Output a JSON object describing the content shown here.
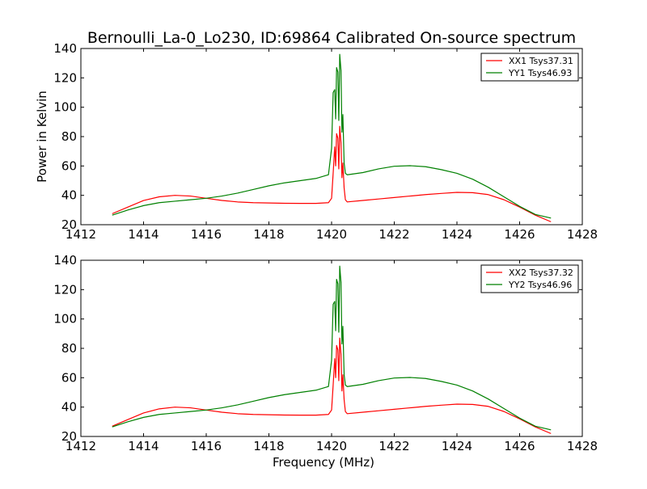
{
  "figure_title": "Bernoulli_La-0_Lo230, ID:69864 Calibrated On-source spectrum",
  "chart_data": [
    {
      "type": "line",
      "title": "Bernoulli_La-0_Lo230, ID:69864 Calibrated On-source spectrum",
      "xlabel": "",
      "ylabel": "Power in Kelvin",
      "xlim": [
        1412,
        1428
      ],
      "ylim": [
        20,
        140
      ],
      "xticks": [
        "1412",
        "1414",
        "1416",
        "1418",
        "1420",
        "1422",
        "1424",
        "1426",
        "1428"
      ],
      "yticks": [
        "20",
        "40",
        "60",
        "80",
        "100",
        "120",
        "140"
      ],
      "grid": false,
      "legend_position": "top-right",
      "series": [
        {
          "name": "XX1 Tsys37.31",
          "color": "#ff0000",
          "x": [
            1413.0,
            1413.5,
            1414.0,
            1414.5,
            1415.0,
            1415.5,
            1416.0,
            1416.5,
            1417.0,
            1417.5,
            1418.0,
            1418.5,
            1419.0,
            1419.5,
            1419.9,
            1420.0,
            1420.05,
            1420.1,
            1420.13,
            1420.16,
            1420.2,
            1420.23,
            1420.26,
            1420.3,
            1420.33,
            1420.36,
            1420.4,
            1420.44,
            1420.5,
            1421.0,
            1421.5,
            1422.0,
            1422.5,
            1423.0,
            1423.5,
            1424.0,
            1424.5,
            1425.0,
            1425.5,
            1426.0,
            1426.5,
            1427.0
          ],
          "y": [
            27.5,
            32,
            36.5,
            39,
            40,
            39.5,
            38,
            36.5,
            35.5,
            35,
            34.8,
            34.6,
            34.5,
            34.5,
            35,
            38,
            55,
            73,
            60,
            82,
            79,
            58,
            87,
            76,
            52,
            62,
            45,
            37,
            35.5,
            36.5,
            37.5,
            38.5,
            39.5,
            40.5,
            41.3,
            42,
            41.8,
            40.5,
            37,
            32,
            26.5,
            22
          ]
        },
        {
          "name": "YY1 Tsys46.93",
          "color": "#008000",
          "x": [
            1413.0,
            1413.5,
            1414.0,
            1414.5,
            1415.0,
            1415.5,
            1416.0,
            1416.5,
            1417.0,
            1417.5,
            1418.0,
            1418.5,
            1419.0,
            1419.5,
            1419.9,
            1420.0,
            1420.05,
            1420.1,
            1420.13,
            1420.16,
            1420.2,
            1420.23,
            1420.26,
            1420.3,
            1420.33,
            1420.36,
            1420.4,
            1420.44,
            1420.5,
            1421.0,
            1421.5,
            1422.0,
            1422.5,
            1423.0,
            1423.5,
            1424.0,
            1424.5,
            1425.0,
            1425.5,
            1426.0,
            1426.5,
            1427.0
          ],
          "y": [
            26.5,
            30,
            33,
            35,
            36,
            37,
            38,
            39.5,
            41.5,
            44,
            46.5,
            48.5,
            50,
            51.5,
            54,
            72,
            110,
            112,
            92,
            127,
            124,
            91,
            136,
            125,
            83,
            95,
            62,
            55,
            54,
            55.5,
            58,
            59.8,
            60.2,
            59.5,
            57.5,
            55,
            51,
            45.5,
            39,
            32.5,
            27,
            24.5
          ]
        }
      ]
    },
    {
      "type": "line",
      "title": "",
      "xlabel": "Frequency (MHz)",
      "ylabel": "",
      "xlim": [
        1412,
        1428
      ],
      "ylim": [
        20,
        140
      ],
      "xticks": [
        "1412",
        "1414",
        "1416",
        "1418",
        "1420",
        "1422",
        "1424",
        "1426",
        "1428"
      ],
      "yticks": [
        "20",
        "40",
        "60",
        "80",
        "100",
        "120",
        "140"
      ],
      "grid": false,
      "legend_position": "top-right",
      "series": [
        {
          "name": "XX2 Tsys37.32",
          "color": "#ff0000",
          "x": [
            1413.0,
            1413.5,
            1414.0,
            1414.5,
            1415.0,
            1415.5,
            1416.0,
            1416.5,
            1417.0,
            1417.5,
            1418.0,
            1418.5,
            1419.0,
            1419.5,
            1419.9,
            1420.0,
            1420.05,
            1420.1,
            1420.13,
            1420.16,
            1420.2,
            1420.23,
            1420.26,
            1420.3,
            1420.33,
            1420.36,
            1420.4,
            1420.44,
            1420.5,
            1421.0,
            1421.5,
            1422.0,
            1422.5,
            1423.0,
            1423.5,
            1424.0,
            1424.5,
            1425.0,
            1425.5,
            1426.0,
            1426.5,
            1427.0
          ],
          "y": [
            27,
            31.5,
            36,
            38.8,
            40,
            39.5,
            38,
            36.5,
            35.5,
            35,
            34.8,
            34.6,
            34.5,
            34.5,
            35,
            38,
            55,
            73,
            60,
            82,
            79,
            58,
            87,
            76,
            51,
            62,
            45,
            37,
            35.5,
            36.5,
            37.5,
            38.5,
            39.5,
            40.5,
            41.3,
            42,
            41.8,
            40.5,
            37,
            32,
            26.5,
            22
          ]
        },
        {
          "name": "YY2 Tsys46.96",
          "color": "#008000",
          "x": [
            1413.0,
            1413.5,
            1414.0,
            1414.5,
            1415.0,
            1415.5,
            1416.0,
            1416.5,
            1417.0,
            1417.5,
            1418.0,
            1418.5,
            1419.0,
            1419.5,
            1419.9,
            1420.0,
            1420.05,
            1420.1,
            1420.13,
            1420.16,
            1420.2,
            1420.23,
            1420.26,
            1420.3,
            1420.33,
            1420.36,
            1420.4,
            1420.44,
            1420.5,
            1421.0,
            1421.5,
            1422.0,
            1422.5,
            1423.0,
            1423.5,
            1424.0,
            1424.5,
            1425.0,
            1425.5,
            1426.0,
            1426.5,
            1427.0
          ],
          "y": [
            26.5,
            30,
            33,
            35,
            36,
            37,
            38,
            39.5,
            41.5,
            44,
            46.5,
            48.5,
            50,
            51.5,
            54,
            72,
            110,
            112,
            92,
            127,
            124,
            91,
            136,
            125,
            83,
            95,
            62,
            55,
            54,
            55.5,
            58,
            59.8,
            60.2,
            59.5,
            57.5,
            55,
            51,
            45.5,
            39,
            32.5,
            27,
            24.5
          ]
        }
      ]
    }
  ]
}
